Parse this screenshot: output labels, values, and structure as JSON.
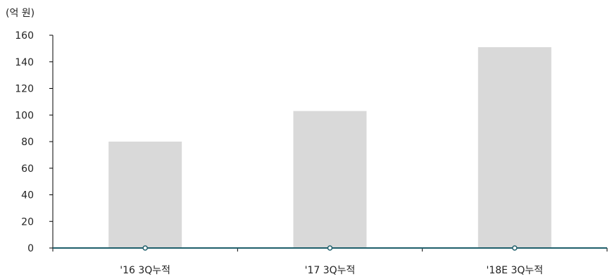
{
  "chart_data": {
    "type": "bar",
    "unit_label": "(억 원)",
    "categories": [
      "'16 3Q누적",
      "'17 3Q누적",
      "'18E 3Q누적"
    ],
    "values": [
      80,
      103,
      151
    ],
    "line_values": [
      0,
      0,
      0
    ],
    "yticks": [
      0,
      20,
      40,
      60,
      80,
      100,
      120,
      140,
      160
    ],
    "ylim": [
      0,
      160
    ],
    "grid": false,
    "colors": {
      "bar": "#d9d9d9",
      "line": "#1f5f6b",
      "axis": "#000000"
    }
  }
}
